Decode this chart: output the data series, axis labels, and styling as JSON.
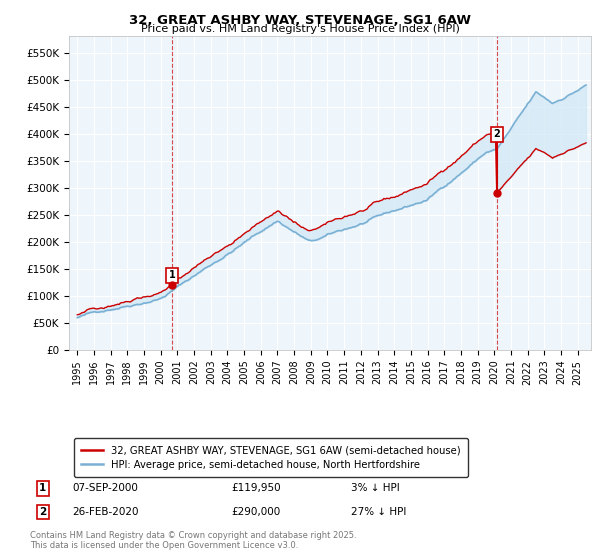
{
  "title": "32, GREAT ASHBY WAY, STEVENAGE, SG1 6AW",
  "subtitle": "Price paid vs. HM Land Registry's House Price Index (HPI)",
  "legend_line1": "32, GREAT ASHBY WAY, STEVENAGE, SG1 6AW (semi-detached house)",
  "legend_line2": "HPI: Average price, semi-detached house, North Hertfordshire",
  "annotation1": {
    "num": "1",
    "date": "07-SEP-2000",
    "price": "£119,950",
    "pct": "3% ↓ HPI",
    "x_year": 2000.68
  },
  "annotation2": {
    "num": "2",
    "date": "26-FEB-2020",
    "price": "£290,000",
    "pct": "27% ↓ HPI",
    "x_year": 2020.15
  },
  "footer": "Contains HM Land Registry data © Crown copyright and database right 2025.\nThis data is licensed under the Open Government Licence v3.0.",
  "hpi_color": "#7ab0d4",
  "price_color": "#cc0000",
  "fill_color": "#d0e8f5",
  "annotation_line_color": "#cc0000",
  "ylim": [
    0,
    580000
  ],
  "xlim_start": 1994.5,
  "xlim_end": 2025.8,
  "yticks": [
    0,
    50000,
    100000,
    150000,
    200000,
    250000,
    300000,
    350000,
    400000,
    450000,
    500000,
    550000
  ],
  "ytick_labels": [
    "£0",
    "£50K",
    "£100K",
    "£150K",
    "£200K",
    "£250K",
    "£300K",
    "£350K",
    "£400K",
    "£450K",
    "£500K",
    "£550K"
  ],
  "sale1_year": 2000.68,
  "sale1_price": 119950,
  "sale2_year": 2020.15,
  "sale2_price": 290000,
  "seed": 42
}
